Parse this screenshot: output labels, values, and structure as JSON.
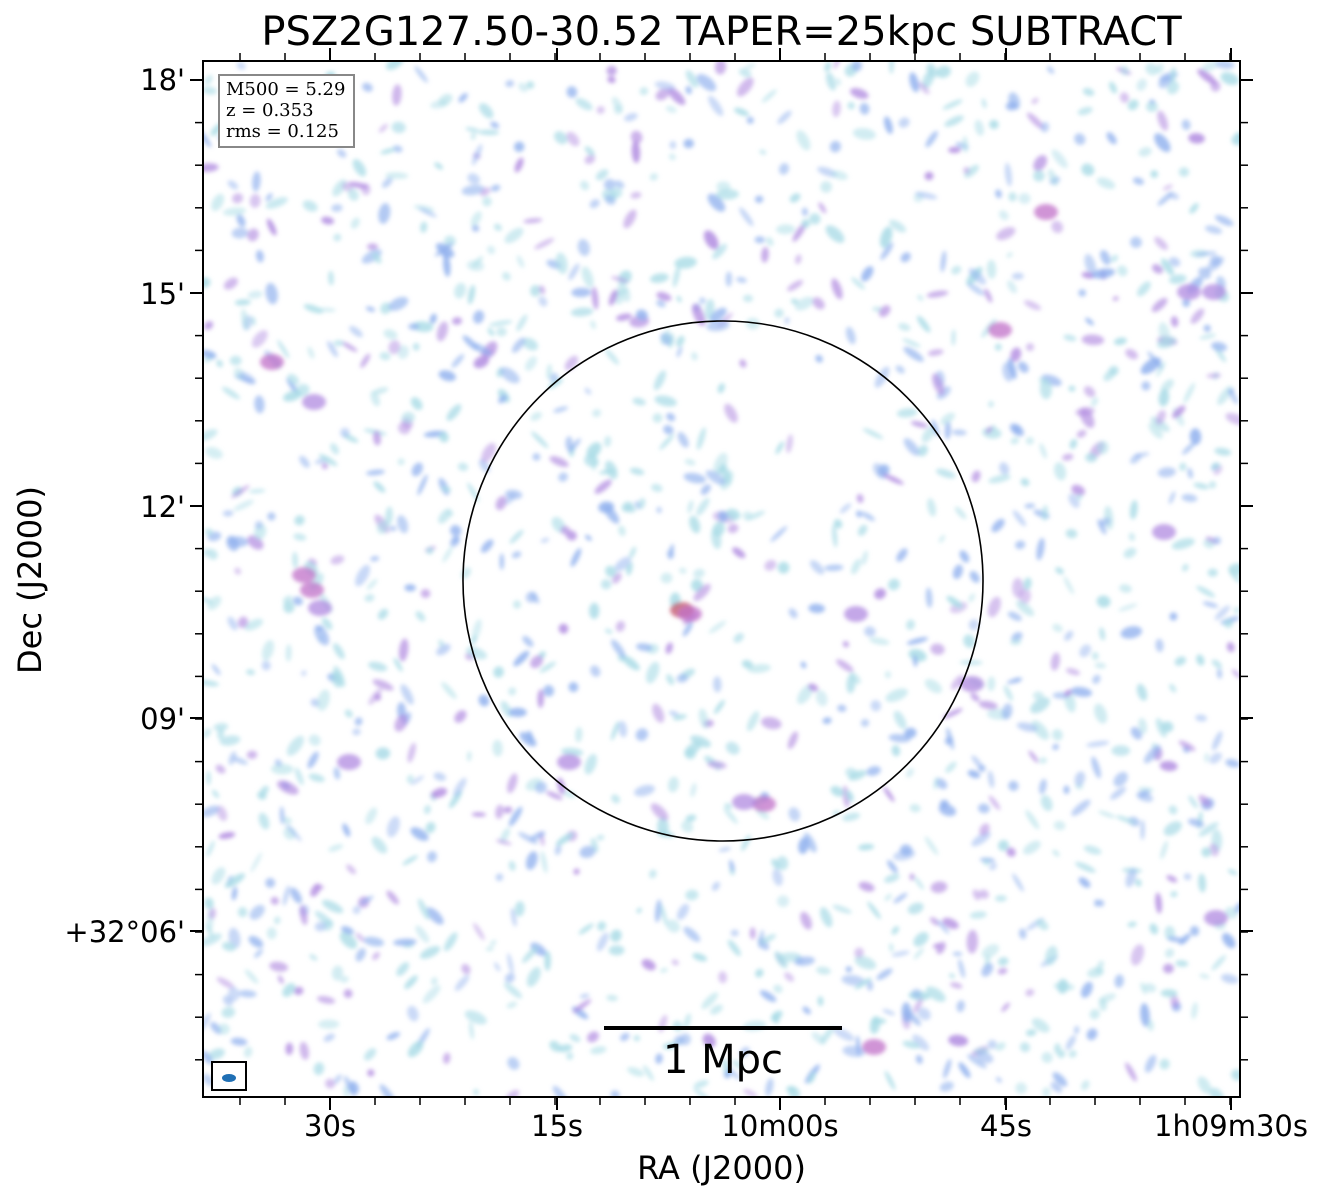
{
  "figure": {
    "title": "PSZ2G127.50-30.52 TAPER=25kpc SUBTRACT",
    "xlabel": "RA (J2000)",
    "ylabel": "Dec (J2000)",
    "x_ticks": [
      "30s",
      "15s",
      "10m00s",
      "45s",
      "1h09m30s"
    ],
    "y_ticks": [
      "18'",
      "15'",
      "12'",
      "09'",
      "+32°06'"
    ]
  },
  "info": {
    "m500": "M500 = 5.29",
    "z": "z = 0.353",
    "rms": "rms = 0.125"
  },
  "scalebar": {
    "label": "1 Mpc"
  },
  "beam": {
    "color": "#1f6fb4"
  },
  "colors": {
    "faint": "#a8dbe6",
    "low": "#8fb0ee",
    "mid": "#b08ae0",
    "high": "#c070c8",
    "peak": "#c05068"
  }
}
